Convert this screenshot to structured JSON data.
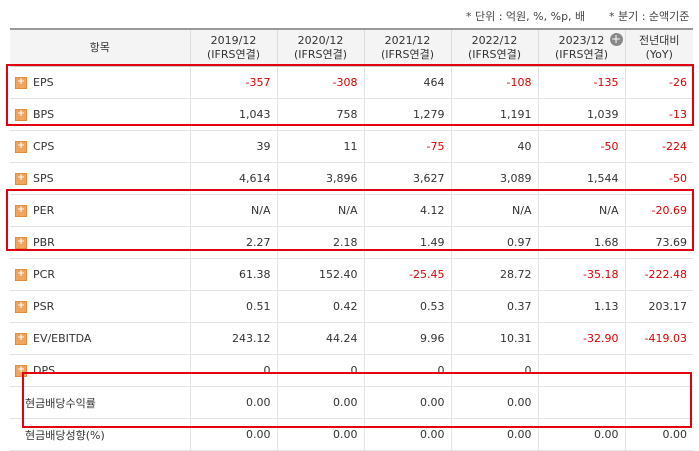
{
  "notes": {
    "unit": "* 단위 : 억원, %, %p, 배",
    "period": "* 분기 : 순액기준"
  },
  "header": {
    "item": "항목",
    "columns": [
      {
        "year": "2019/12",
        "basis": "(IFRS연결)"
      },
      {
        "year": "2020/12",
        "basis": "(IFRS연결)"
      },
      {
        "year": "2021/12",
        "basis": "(IFRS연결)"
      },
      {
        "year": "2022/12",
        "basis": "(IFRS연결)"
      },
      {
        "year": "2023/12",
        "basis": "(IFRS연결)"
      }
    ],
    "yoy": {
      "line1": "전년대비",
      "line2": "(YoY)"
    }
  },
  "rows": [
    {
      "label": "EPS",
      "values": [
        "-357",
        "-308",
        "464",
        "-108",
        "-135",
        "-26"
      ]
    },
    {
      "label": "BPS",
      "values": [
        "1,043",
        "758",
        "1,279",
        "1,191",
        "1,039",
        "-13"
      ]
    },
    {
      "label": "CPS",
      "values": [
        "39",
        "11",
        "-75",
        "40",
        "-50",
        "-224"
      ]
    },
    {
      "label": "SPS",
      "values": [
        "4,614",
        "3,896",
        "3,627",
        "3,089",
        "1,544",
        "-50"
      ]
    },
    {
      "label": "PER",
      "values": [
        "N/A",
        "N/A",
        "4.12",
        "N/A",
        "N/A",
        "-20.69"
      ]
    },
    {
      "label": "PBR",
      "values": [
        "2.27",
        "2.18",
        "1.49",
        "0.97",
        "1.68",
        "73.69"
      ]
    },
    {
      "label": "PCR",
      "values": [
        "61.38",
        "152.40",
        "-25.45",
        "28.72",
        "-35.18",
        "-222.48"
      ]
    },
    {
      "label": "PSR",
      "values": [
        "0.51",
        "0.42",
        "0.53",
        "0.37",
        "1.13",
        "203.17"
      ]
    },
    {
      "label": "EV/EBITDA",
      "values": [
        "243.12",
        "44.24",
        "9.96",
        "10.31",
        "-32.90",
        "-419.03"
      ]
    },
    {
      "label": "DPS",
      "values": [
        "0",
        "0",
        "0",
        "0",
        "",
        ""
      ]
    },
    {
      "label": "현금배당수익률",
      "values": [
        "0.00",
        "0.00",
        "0.00",
        "0.00",
        "",
        ""
      ]
    },
    {
      "label": "현금배당성향(%)",
      "values": [
        "0.00",
        "0.00",
        "0.00",
        "0.00",
        "0.00",
        "0.00"
      ]
    }
  ],
  "icons": {
    "expand": "plus-square-icon",
    "add_column": "plus-circle-icon"
  },
  "colors": {
    "negative": "#e00000",
    "highlight": "#e0000f",
    "expand_icon": "#f2a35c"
  }
}
